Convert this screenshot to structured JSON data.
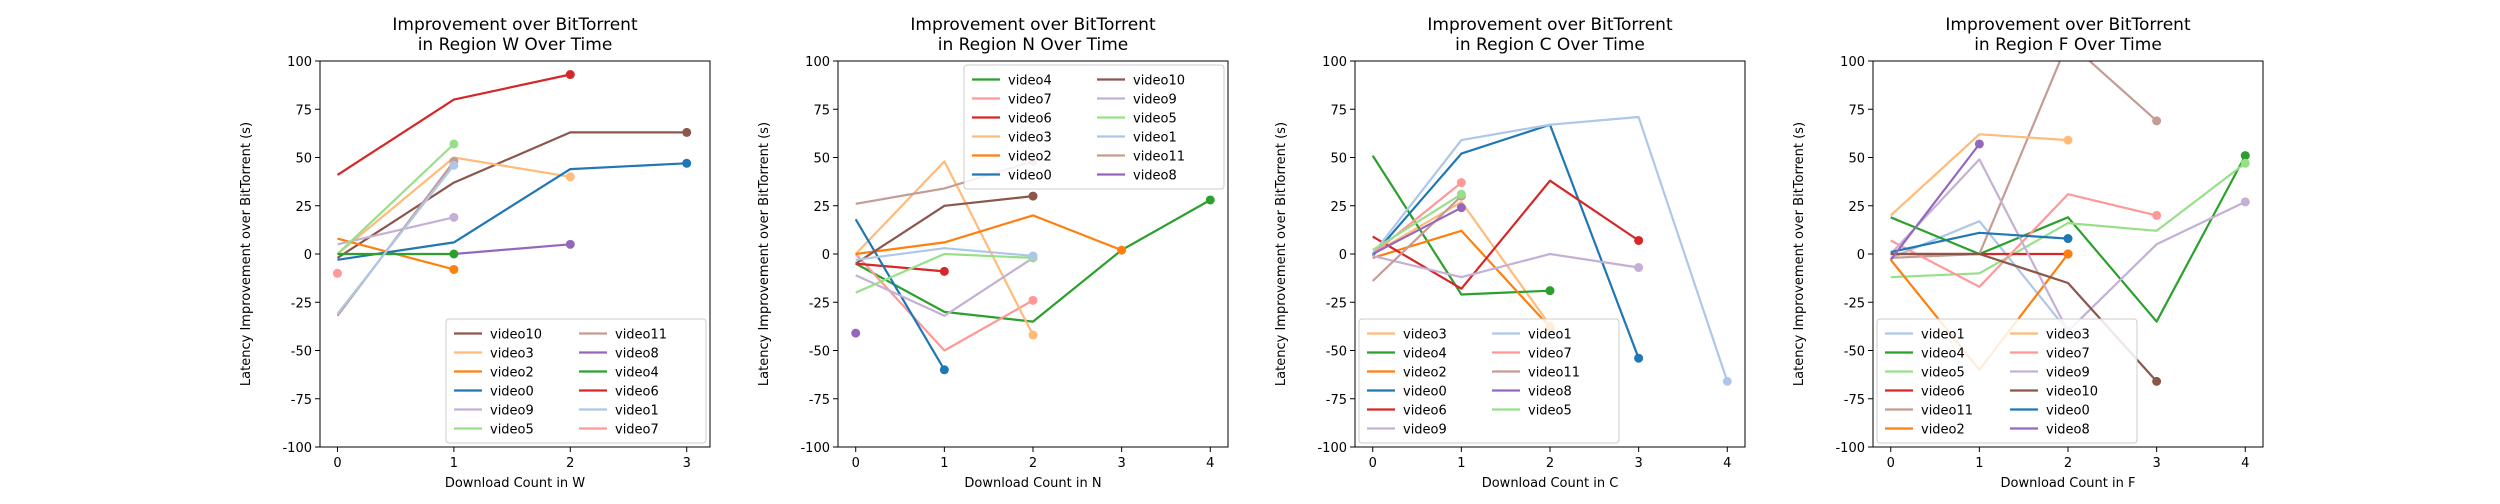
{
  "colors": {
    "video0": "#1f77b4",
    "video1": "#aec7e8",
    "video2": "#ff7f0e",
    "video3": "#ffbb78",
    "video4": "#2ca02c",
    "video5": "#98df8a",
    "video6": "#d62728",
    "video7": "#ff9896",
    "video8": "#9467bd",
    "video9": "#c5b0d5",
    "video10": "#8c564b",
    "video11": "#c49c94"
  },
  "chart_data": [
    {
      "type": "line",
      "title": "Improvement over BitTorrent\nin Region W Over Time",
      "xlabel": "Download Count in W",
      "ylabel": "Latency Improvement over BitTorrent (s)",
      "xlim": [
        -0.15,
        3.2
      ],
      "ylim": [
        -100,
        100
      ],
      "xticks": [
        0,
        1,
        2,
        3
      ],
      "yticks": [
        -100,
        -75,
        -50,
        -25,
        0,
        25,
        50,
        75,
        100
      ],
      "grid": false,
      "legend": {
        "position": "lower-right",
        "columns": 2,
        "order": [
          "video10",
          "video11",
          "video3",
          "video8",
          "video2",
          "video4",
          "video0",
          "video6",
          "video9",
          "video1",
          "video5",
          "video7"
        ]
      },
      "series": [
        {
          "name": "video10",
          "x": [
            0,
            1,
            2,
            3
          ],
          "y": [
            -2,
            37,
            63,
            63
          ]
        },
        {
          "name": "video3",
          "x": [
            0,
            1,
            2
          ],
          "y": [
            0,
            50,
            40
          ]
        },
        {
          "name": "video2",
          "x": [
            0,
            1
          ],
          "y": [
            8,
            -8
          ]
        },
        {
          "name": "video0",
          "x": [
            0,
            1,
            2,
            3
          ],
          "y": [
            -3,
            6,
            44,
            47
          ]
        },
        {
          "name": "video9",
          "x": [
            0,
            1
          ],
          "y": [
            5,
            19
          ]
        },
        {
          "name": "video5",
          "x": [
            0,
            1
          ],
          "y": [
            0,
            57
          ]
        },
        {
          "name": "video11",
          "x": [
            0,
            1
          ],
          "y": [
            -32,
            48
          ]
        },
        {
          "name": "video8",
          "x": [
            1,
            2
          ],
          "y": [
            0,
            5
          ]
        },
        {
          "name": "video4",
          "x": [
            0,
            1
          ],
          "y": [
            0,
            0
          ]
        },
        {
          "name": "video6",
          "x": [
            0,
            1,
            2
          ],
          "y": [
            41,
            80,
            93
          ]
        },
        {
          "name": "video1",
          "x": [
            0,
            1
          ],
          "y": [
            -31,
            46
          ]
        },
        {
          "name": "video7",
          "x": [
            0
          ],
          "y": [
            -10
          ]
        }
      ]
    },
    {
      "type": "line",
      "title": "Improvement over BitTorrent\nin Region N Over Time",
      "xlabel": "Download Count in N",
      "ylabel": "Latency Improvement over BitTorrent (s)",
      "xlim": [
        -0.2,
        4.2
      ],
      "ylim": [
        -100,
        100
      ],
      "xticks": [
        0,
        1,
        2,
        3,
        4
      ],
      "yticks": [
        -100,
        -75,
        -50,
        -25,
        0,
        25,
        50,
        75,
        100
      ],
      "grid": false,
      "legend": {
        "position": "top-right",
        "columns": 2,
        "order": [
          "video4",
          "video10",
          "video7",
          "video9",
          "video6",
          "video5",
          "video3",
          "video1",
          "video2",
          "video11",
          "video0",
          "video8"
        ]
      },
      "series": [
        {
          "name": "video4",
          "x": [
            0,
            1,
            2,
            3,
            4
          ],
          "y": [
            -5,
            -30,
            -35,
            2,
            28
          ]
        },
        {
          "name": "video7",
          "x": [
            0,
            1,
            2
          ],
          "y": [
            0,
            -50,
            -24
          ]
        },
        {
          "name": "video6",
          "x": [
            0,
            1
          ],
          "y": [
            -5,
            -9
          ]
        },
        {
          "name": "video3",
          "x": [
            0,
            1,
            2
          ],
          "y": [
            0,
            48,
            -42
          ]
        },
        {
          "name": "video2",
          "x": [
            0,
            1,
            2,
            3
          ],
          "y": [
            0,
            6,
            20,
            2
          ]
        },
        {
          "name": "video0",
          "x": [
            0,
            1
          ],
          "y": [
            18,
            -60
          ]
        },
        {
          "name": "video10",
          "x": [
            0,
            1,
            2
          ],
          "y": [
            -5,
            25,
            30
          ]
        },
        {
          "name": "video9",
          "x": [
            0,
            1,
            2
          ],
          "y": [
            -11,
            -32,
            -2
          ]
        },
        {
          "name": "video5",
          "x": [
            0,
            1,
            2
          ],
          "y": [
            -20,
            0,
            -2
          ]
        },
        {
          "name": "video1",
          "x": [
            0,
            1,
            2
          ],
          "y": [
            -3,
            3,
            -1
          ]
        },
        {
          "name": "video11",
          "x": [
            0,
            1,
            2
          ],
          "y": [
            26,
            34,
            48
          ]
        },
        {
          "name": "video8",
          "x": [
            0
          ],
          "y": [
            -41
          ]
        }
      ]
    },
    {
      "type": "line",
      "title": "Improvement over BitTorrent\nin Region C Over Time",
      "xlabel": "Download Count in C",
      "ylabel": "Latency Improvement over BitTorrent (s)",
      "xlim": [
        -0.2,
        4.2
      ],
      "ylim": [
        -100,
        100
      ],
      "xticks": [
        0,
        1,
        2,
        3,
        4
      ],
      "yticks": [
        -100,
        -75,
        -50,
        -25,
        0,
        25,
        50,
        75,
        100
      ],
      "grid": false,
      "legend": {
        "position": "lower-left",
        "columns": 2,
        "order": [
          "video3",
          "video1",
          "video4",
          "video7",
          "video2",
          "video11",
          "video0",
          "video8",
          "video6",
          "video5",
          "video9"
        ]
      },
      "series": [
        {
          "name": "video3",
          "x": [
            0,
            1,
            2
          ],
          "y": [
            0,
            27,
            -37
          ]
        },
        {
          "name": "video4",
          "x": [
            0,
            1,
            2
          ],
          "y": [
            51,
            -21,
            -19
          ]
        },
        {
          "name": "video2",
          "x": [
            0,
            1,
            2
          ],
          "y": [
            -2,
            12,
            -38
          ]
        },
        {
          "name": "video0",
          "x": [
            0,
            1,
            2,
            3
          ],
          "y": [
            -1,
            52,
            67,
            -54
          ]
        },
        {
          "name": "video6",
          "x": [
            0,
            1,
            2,
            3
          ],
          "y": [
            9,
            -18,
            38,
            7
          ]
        },
        {
          "name": "video9",
          "x": [
            0,
            1,
            2,
            3
          ],
          "y": [
            -1,
            -12,
            0,
            -7
          ]
        },
        {
          "name": "video1",
          "x": [
            0,
            1,
            2,
            3,
            4
          ],
          "y": [
            0,
            59,
            67,
            71,
            -66
          ]
        },
        {
          "name": "video7",
          "x": [
            0,
            1
          ],
          "y": [
            0,
            37
          ]
        },
        {
          "name": "video11",
          "x": [
            0,
            1
          ],
          "y": [
            -14,
            30
          ]
        },
        {
          "name": "video8",
          "x": [
            0,
            1
          ],
          "y": [
            0,
            24
          ]
        },
        {
          "name": "video5",
          "x": [
            0,
            1
          ],
          "y": [
            2,
            31
          ]
        }
      ]
    },
    {
      "type": "line",
      "title": "Improvement over BitTorrent\nin Region F Over Time",
      "xlabel": "Download Count in F",
      "ylabel": "Latency Improvement over BitTorrent (s)",
      "xlim": [
        -0.2,
        4.2
      ],
      "ylim": [
        -100,
        100
      ],
      "xticks": [
        0,
        1,
        2,
        3,
        4
      ],
      "yticks": [
        -100,
        -75,
        -50,
        -25,
        0,
        25,
        50,
        75,
        100
      ],
      "grid": false,
      "legend": {
        "position": "lower-left",
        "columns": 2,
        "order": [
          "video1",
          "video3",
          "video4",
          "video7",
          "video5",
          "video9",
          "video6",
          "video10",
          "video11",
          "video0",
          "video2",
          "video8"
        ]
      },
      "series": [
        {
          "name": "video1",
          "x": [
            0,
            1,
            2
          ],
          "y": [
            -2,
            17,
            -40
          ]
        },
        {
          "name": "video4",
          "x": [
            0,
            1,
            2,
            3,
            4
          ],
          "y": [
            19,
            0,
            19,
            -35,
            51
          ]
        },
        {
          "name": "video5",
          "x": [
            0,
            1,
            2,
            3,
            4
          ],
          "y": [
            -12,
            -10,
            16,
            12,
            47
          ]
        },
        {
          "name": "video6",
          "x": [
            0,
            1,
            2
          ],
          "y": [
            0,
            0,
            0
          ]
        },
        {
          "name": "video11",
          "x": [
            0,
            1,
            2,
            3
          ],
          "y": [
            -2,
            0,
            110,
            69
          ]
        },
        {
          "name": "video2",
          "x": [
            0,
            1,
            2
          ],
          "y": [
            -3,
            -60,
            0
          ]
        },
        {
          "name": "video3",
          "x": [
            0,
            1,
            2
          ],
          "y": [
            20,
            62,
            59
          ]
        },
        {
          "name": "video7",
          "x": [
            0,
            1,
            2,
            3
          ],
          "y": [
            7,
            -17,
            31,
            20
          ]
        },
        {
          "name": "video9",
          "x": [
            0,
            1,
            2,
            3,
            4
          ],
          "y": [
            0,
            49,
            -40,
            5,
            27
          ]
        },
        {
          "name": "video10",
          "x": [
            0,
            1,
            2,
            3
          ],
          "y": [
            0,
            0,
            -15,
            -66
          ]
        },
        {
          "name": "video0",
          "x": [
            0,
            1,
            2
          ],
          "y": [
            1,
            11,
            8
          ]
        },
        {
          "name": "video8",
          "x": [
            0,
            1
          ],
          "y": [
            -3,
            57
          ]
        }
      ]
    }
  ]
}
